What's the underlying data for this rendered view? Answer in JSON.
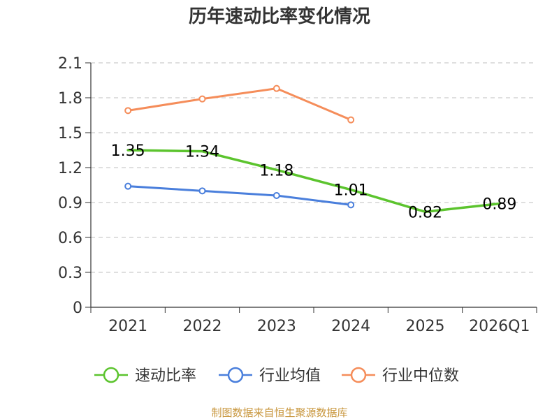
{
  "chart_data": {
    "type": "line",
    "title": "历年速动比率变化情况",
    "categories": [
      "2021",
      "2022",
      "2023",
      "2024",
      "2025",
      "2026Q1"
    ],
    "y_ticks": [
      "0",
      "0.3",
      "0.6",
      "0.9",
      "1.2",
      "1.5",
      "1.8",
      "2.1"
    ],
    "ylim": [
      0,
      2.1
    ],
    "grid": true,
    "legend_position": "bottom",
    "series": [
      {
        "name": "速动比率",
        "color": "#5cc42e",
        "values": [
          1.35,
          1.34,
          1.18,
          1.01,
          0.82,
          0.89
        ],
        "labels": [
          "1.35",
          "1.34",
          "1.18",
          "1.01",
          "0.82",
          "0.89"
        ],
        "show_markers": false
      },
      {
        "name": "行业均值",
        "color": "#4a7fdc",
        "values": [
          1.04,
          1.0,
          0.96,
          0.88,
          null,
          null
        ],
        "labels": [],
        "show_markers": true
      },
      {
        "name": "行业中位数",
        "color": "#f58d5a",
        "values": [
          1.69,
          1.79,
          1.88,
          1.61,
          null,
          null
        ],
        "labels": [],
        "show_markers": true
      }
    ]
  },
  "source_note": "制图数据来自恒生聚源数据库"
}
